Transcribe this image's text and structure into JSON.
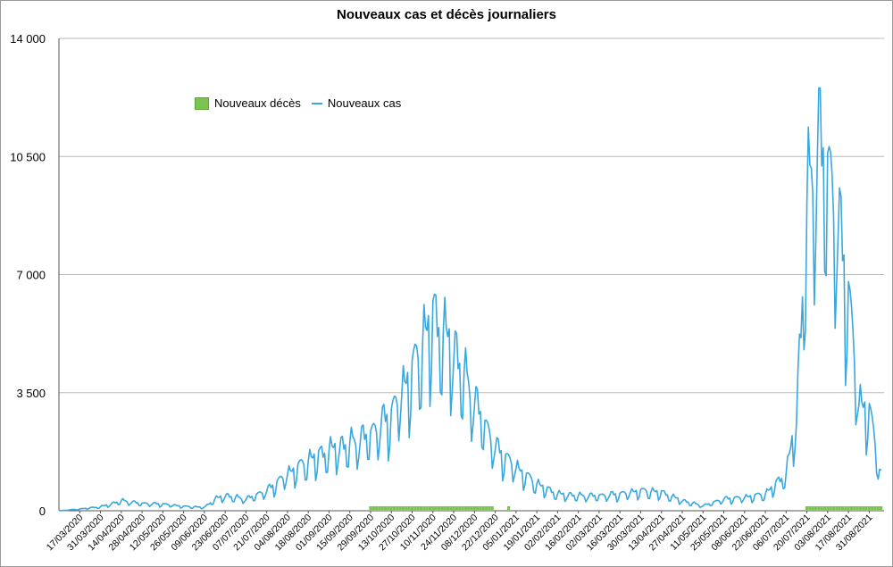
{
  "chart_data": {
    "type": "line",
    "title": "Nouveaux cas et décès journaliers",
    "xlabel": "",
    "ylabel": "",
    "ylim": [
      0,
      14000
    ],
    "y_ticks": [
      "0",
      "3500",
      "7000",
      "10500",
      "14000"
    ],
    "y_tick_values": [
      0,
      3500,
      7000,
      10500,
      14000
    ],
    "grid": true,
    "legend_position": "top-left",
    "x_tick_labels": [
      "17/03/2020",
      "31/03/2020",
      "14/04/2020",
      "28/04/2020",
      "12/05/2020",
      "26/05/2020",
      "09/06/2020",
      "23/06/2020",
      "07/07/2020",
      "21/07/2020",
      "04/08/2020",
      "18/08/2020",
      "01/09/2020",
      "15/09/2020",
      "29/09/2020",
      "13/10/2020",
      "27/10/2020",
      "10/11/2020",
      "24/11/2020",
      "08/12/2020",
      "22/12/2020",
      "05/01/2021",
      "19/01/2021",
      "02/02/2021",
      "16/02/2021",
      "02/03/2021",
      "16/03/2021",
      "30/03/2021",
      "13/04/2021",
      "27/04/2021",
      "11/05/2021",
      "25/05/2021",
      "08/06/2021",
      "22/06/2021",
      "06/07/2021",
      "20/07/2021",
      "03/08/2021",
      "17/08/2021",
      "31/08/2021"
    ],
    "series": [
      {
        "name": "Nouveaux décès",
        "color": "#7cc250",
        "x": [
          "29/09/2020 to 20/12/2020",
          "31/12/2020",
          "20/07/2021 to 08/09/2021"
        ],
        "values": [
          0,
          0,
          0
        ]
      },
      {
        "name": "Nouveaux cas",
        "color": "#3aa7dd",
        "x": [
          "03/03/2020",
          "17/03/2020",
          "31/03/2020",
          "07/04/2020",
          "14/04/2020",
          "28/04/2020",
          "12/05/2020",
          "26/05/2020",
          "09/06/2020",
          "16/06/2020",
          "23/06/2020",
          "07/07/2020",
          "21/07/2020",
          "04/08/2020",
          "18/08/2020",
          "01/09/2020",
          "15/09/2020",
          "29/09/2020",
          "13/10/2020",
          "27/10/2020",
          "10/11/2020",
          "24/11/2020",
          "08/12/2020",
          "22/12/2020",
          "05/01/2021",
          "19/01/2021",
          "02/02/2021",
          "16/02/2021",
          "02/03/2021",
          "16/03/2021",
          "30/03/2021",
          "13/04/2021",
          "27/04/2021",
          "11/05/2021",
          "25/05/2021",
          "08/06/2021",
          "22/06/2021",
          "06/07/2021",
          "13/07/2021",
          "20/07/2021",
          "27/07/2021",
          "03/08/2021",
          "10/08/2021",
          "17/08/2021",
          "24/08/2021",
          "31/08/2021",
          "08/09/2021"
        ],
        "values": [
          0,
          50,
          120,
          200,
          300,
          220,
          200,
          130,
          100,
          350,
          450,
          350,
          600,
          1100,
          1500,
          1800,
          2000,
          2300,
          2900,
          4200,
          5800,
          4800,
          3300,
          1900,
          1300,
          800,
          500,
          450,
          450,
          500,
          600,
          550,
          300,
          150,
          350,
          400,
          500,
          1100,
          2800,
          9000,
          11000,
          10300,
          8500,
          6500,
          3200,
          3000,
          1000
        ]
      }
    ]
  }
}
